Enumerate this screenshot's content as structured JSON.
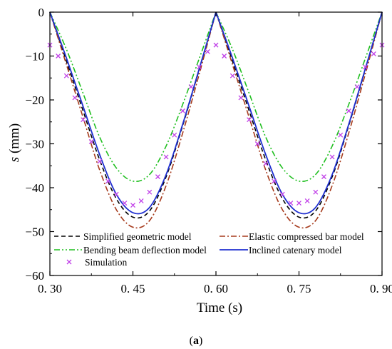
{
  "chart_data": {
    "type": "line",
    "xlabel": "Time (s)",
    "ylabel_italic": "s",
    "ylabel_rest": " (mm)",
    "xlim": [
      0.3,
      0.9
    ],
    "ylim": [
      -60,
      0
    ],
    "xticks": [
      0.3,
      0.45,
      0.6,
      0.75,
      0.9
    ],
    "xtick_labels": [
      "0. 30",
      "0. 45",
      "0. 60",
      "0. 75",
      "0. 90"
    ],
    "yticks": [
      0,
      -10,
      -20,
      -30,
      -40,
      -50,
      -60
    ],
    "ytick_labels": [
      "0",
      "−10",
      "−20",
      "−30",
      "−40",
      "−50",
      "−60"
    ],
    "caption_open": "(",
    "caption_letter": "a",
    "caption_close": ")",
    "legend_position": "bottom-inside",
    "series": [
      {
        "name": "Simplified geometric model",
        "color": "#000000",
        "dash": "dashed",
        "x": [
          0.3,
          0.33,
          0.36,
          0.39,
          0.42,
          0.45,
          0.48,
          0.51,
          0.54,
          0.57,
          0.6,
          0.63,
          0.66,
          0.69,
          0.72,
          0.75,
          0.78,
          0.81,
          0.84,
          0.87,
          0.9
        ],
        "y": [
          0,
          -11.2,
          -22.5,
          -33.7,
          -42.5,
          -46.7,
          -45.3,
          -37.5,
          -25.8,
          -13.0,
          0,
          -11.2,
          -22.5,
          -33.7,
          -42.5,
          -46.7,
          -45.3,
          -37.5,
          -25.8,
          -13.0,
          0
        ]
      },
      {
        "name": "Elastic compressed bar model",
        "color": "#a63a1c",
        "dash": "dashdot",
        "x": [
          0.3,
          0.33,
          0.36,
          0.39,
          0.42,
          0.45,
          0.48,
          0.51,
          0.54,
          0.57,
          0.6,
          0.63,
          0.66,
          0.69,
          0.72,
          0.75,
          0.78,
          0.81,
          0.84,
          0.87,
          0.9
        ],
        "y": [
          0,
          -12.0,
          -24.0,
          -36.0,
          -45.0,
          -49.0,
          -47.5,
          -39.5,
          -27.5,
          -14.0,
          0,
          -12.0,
          -24.0,
          -36.0,
          -45.0,
          -49.0,
          -47.5,
          -39.5,
          -27.5,
          -14.0,
          0
        ]
      },
      {
        "name": "Bending beam deflection model",
        "color": "#1fbf1f",
        "dash": "dashdotdot",
        "x": [
          0.3,
          0.33,
          0.36,
          0.39,
          0.42,
          0.45,
          0.48,
          0.51,
          0.54,
          0.57,
          0.6,
          0.63,
          0.66,
          0.69,
          0.72,
          0.75,
          0.78,
          0.81,
          0.84,
          0.87,
          0.9
        ],
        "y": [
          0,
          -8.5,
          -18.5,
          -28.5,
          -35.5,
          -38.5,
          -37.0,
          -30.5,
          -21.0,
          -10.5,
          0,
          -8.5,
          -18.5,
          -28.5,
          -35.5,
          -38.5,
          -37.0,
          -30.5,
          -21.0,
          -10.5,
          0
        ]
      },
      {
        "name": "Inclined catenary model",
        "color": "#1f2fd0",
        "dash": "solid",
        "x": [
          0.3,
          0.33,
          0.36,
          0.39,
          0.42,
          0.45,
          0.48,
          0.51,
          0.54,
          0.57,
          0.6,
          0.63,
          0.66,
          0.69,
          0.72,
          0.75,
          0.78,
          0.81,
          0.84,
          0.87,
          0.9
        ],
        "y": [
          0,
          -10.5,
          -21.5,
          -32.5,
          -41.5,
          -45.7,
          -44.5,
          -37.0,
          -25.5,
          -12.8,
          0,
          -10.5,
          -21.5,
          -32.5,
          -41.5,
          -45.7,
          -44.5,
          -37.0,
          -25.5,
          -12.8,
          0
        ]
      },
      {
        "name": "Simulation",
        "color": "#c040e8",
        "marker": "x",
        "x": [
          0.3,
          0.315,
          0.33,
          0.345,
          0.36,
          0.375,
          0.39,
          0.405,
          0.42,
          0.435,
          0.45,
          0.465,
          0.48,
          0.495,
          0.51,
          0.525,
          0.54,
          0.555,
          0.57,
          0.585,
          0.6,
          0.615,
          0.63,
          0.645,
          0.66,
          0.675,
          0.69,
          0.705,
          0.72,
          0.735,
          0.75,
          0.765,
          0.78,
          0.795,
          0.81,
          0.825,
          0.84,
          0.855,
          0.87,
          0.885,
          0.9
        ],
        "y": [
          -7.5,
          -10.0,
          -14.5,
          -19.5,
          -24.5,
          -29.5,
          -34.0,
          -38.5,
          -41.5,
          -43.5,
          -44.0,
          -43.0,
          -41.0,
          -37.5,
          -33.0,
          -28.0,
          -22.5,
          -17.0,
          -12.5,
          -9.0,
          -7.5,
          -10.0,
          -14.5,
          -19.5,
          -24.5,
          -30.0,
          -34.5,
          -38.5,
          -41.5,
          -43.5,
          -43.5,
          -43.0,
          -41.0,
          -37.5,
          -33.0,
          -28.0,
          -22.5,
          -17.0,
          -12.5,
          -9.5,
          -7.5
        ]
      }
    ]
  }
}
